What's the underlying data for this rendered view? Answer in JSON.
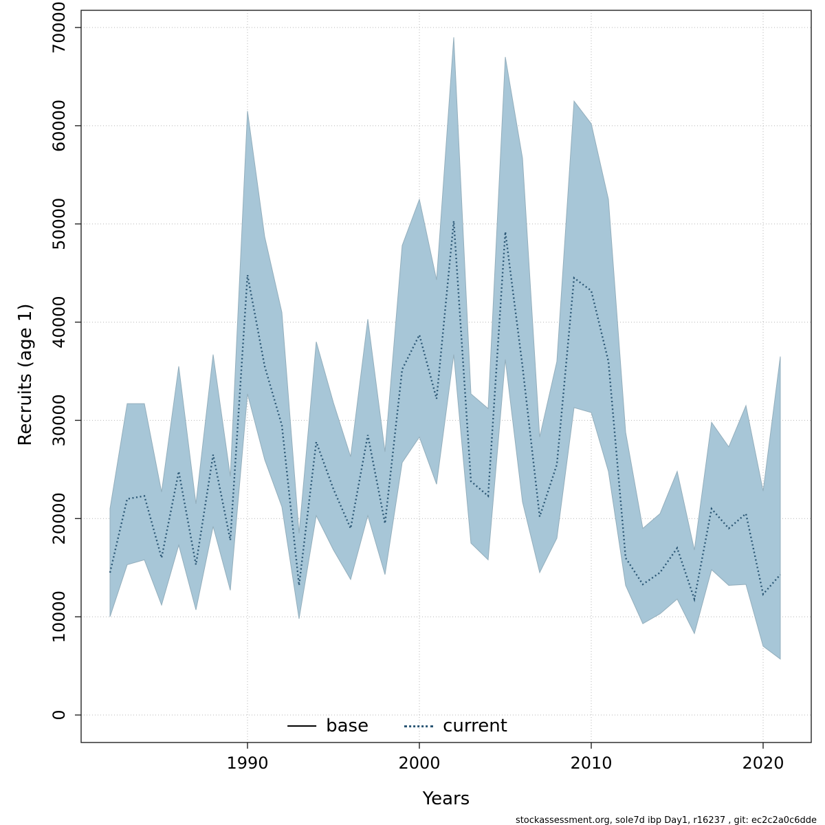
{
  "page": {
    "footer": "stockassessment.org, sole7d ibp  Day1, r16237 , git: ec2c2a0c6dde"
  },
  "chart_data": {
    "type": "line",
    "title": "",
    "xlabel": "Years",
    "ylabel": "Recruits (age 1)",
    "ylim": [
      0,
      70000
    ],
    "xlim": [
      1981.5,
      2021.8
    ],
    "grid": true,
    "legend_position": "bottom-center-inside",
    "x_ticks": [
      1990,
      2000,
      2010,
      2020
    ],
    "y_ticks": [
      0,
      10000,
      20000,
      30000,
      40000,
      50000,
      60000,
      70000
    ],
    "legend": [
      {
        "label": "base",
        "style": "solid",
        "color": "#000000"
      },
      {
        "label": "current",
        "style": "dotted",
        "color": "#2a5674"
      }
    ],
    "x": [
      1982,
      1983,
      1984,
      1985,
      1986,
      1987,
      1988,
      1989,
      1990,
      1991,
      1992,
      1993,
      1994,
      1995,
      1996,
      1997,
      1998,
      1999,
      2000,
      2001,
      2002,
      2003,
      2004,
      2005,
      2006,
      2007,
      2008,
      2009,
      2010,
      2011,
      2012,
      2013,
      2014,
      2015,
      2016,
      2017,
      2018,
      2019,
      2020,
      2021
    ],
    "series": [
      {
        "name": "current",
        "style": "dotted",
        "color": "#2a5674",
        "values": [
          14500,
          22000,
          22300,
          16000,
          24800,
          15300,
          26500,
          17800,
          44800,
          35500,
          29500,
          13200,
          27800,
          23000,
          19000,
          28500,
          19500,
          35200,
          38700,
          32200,
          50300,
          23800,
          22300,
          49200,
          35500,
          20200,
          25500,
          44500,
          43200,
          36000,
          16000,
          13300,
          14500,
          17000,
          11800,
          21000,
          19000,
          20500,
          12300,
          14300
        ]
      }
    ],
    "band": {
      "name": "confidence-band",
      "color": "#a7c6d7",
      "edge": "#93aebc",
      "upper": [
        21000,
        31700,
        31700,
        22700,
        35500,
        21500,
        36700,
        24300,
        61500,
        48700,
        41000,
        18500,
        38000,
        31800,
        26300,
        40300,
        26800,
        47800,
        52500,
        44300,
        69000,
        32700,
        31200,
        67000,
        56700,
        28300,
        36000,
        62500,
        60200,
        52500,
        28800,
        19000,
        20500,
        24800,
        16800,
        29800,
        27300,
        31500,
        22800,
        36500
      ],
      "lower": [
        10000,
        15300,
        15800,
        11200,
        17300,
        10700,
        19200,
        12700,
        32700,
        26000,
        21200,
        9800,
        20300,
        16800,
        13800,
        20300,
        14300,
        25700,
        28300,
        23500,
        36700,
        17500,
        15800,
        36200,
        21700,
        14500,
        18000,
        31300,
        30800,
        24800,
        13200,
        9300,
        10300,
        11800,
        8300,
        14800,
        13200,
        13300,
        7000,
        5700
      ]
    }
  }
}
